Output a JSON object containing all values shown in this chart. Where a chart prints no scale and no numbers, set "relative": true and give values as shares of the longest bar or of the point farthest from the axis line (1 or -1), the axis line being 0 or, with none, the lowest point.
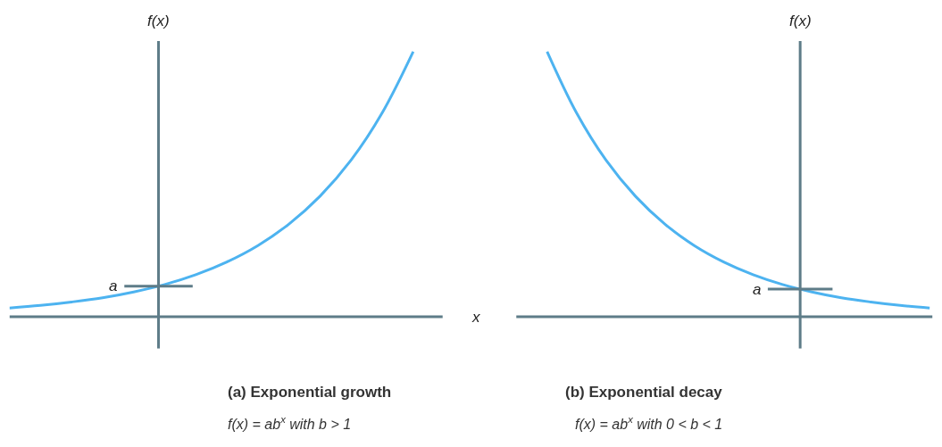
{
  "chart_data": [
    {
      "type": "line",
      "relative": true,
      "title": "(a) Exponential growth",
      "subtitle": "f(x) = ab$^{x}$ with b > 1",
      "xlabel": "x",
      "ylabel": "f(x)",
      "categories": [
        null,
        null,
        null,
        null,
        null,
        null,
        null,
        null,
        null,
        null,
        null,
        null,
        null,
        null
      ],
      "series": [
        {
          "color": "#4db3f0",
          "values": [
            0.033,
            0.043,
            0.056,
            0.072,
            0.094,
            0.122,
            0.159,
            0.207,
            0.269,
            0.35,
            0.455,
            0.591,
            0.769,
            1.0
          ]
        }
      ],
      "annotations": [
        "a"
      ],
      "tick_labels": false
    },
    {
      "type": "line",
      "relative": true,
      "title": "(b) Exponential decay",
      "subtitle": "f(x) = ab$^{x}$ with 0 < b < 1",
      "ylabel": "f(x)",
      "categories": [
        null,
        null,
        null,
        null,
        null,
        null,
        null,
        null,
        null,
        null,
        null,
        null,
        null,
        null
      ],
      "series": [
        {
          "color": "#4db3f0",
          "values": [
            1.0,
            0.769,
            0.591,
            0.455,
            0.35,
            0.269,
            0.207,
            0.159,
            0.122,
            0.094,
            0.072,
            0.056,
            0.043,
            0.033
          ]
        }
      ],
      "annotations": [
        "a"
      ],
      "tick_labels": false
    }
  ]
}
